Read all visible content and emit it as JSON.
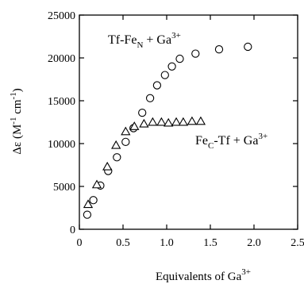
{
  "chart_data": {
    "type": "scatter",
    "xlabel": "Equivalents of Ga",
    "xlabel_sup": "3+",
    "ylabel_prefix": "Δε (M",
    "ylabel_sup1": "-1",
    "ylabel_mid": " cm",
    "ylabel_sup2": "-1",
    "ylabel_suffix": ")",
    "xlim": [
      0,
      2.5
    ],
    "ylim": [
      0,
      25000
    ],
    "x_ticks": [
      0,
      0.5,
      1.0,
      1.5,
      2.0,
      2.5
    ],
    "x_tick_labels": [
      "0",
      "0.5",
      "1.0",
      "1.5",
      "2.0",
      "2.5"
    ],
    "y_ticks": [
      0,
      5000,
      10000,
      15000,
      20000,
      25000
    ],
    "y_tick_labels": [
      "0",
      "5000",
      "10000",
      "15000",
      "20000",
      "25000"
    ],
    "grid": false,
    "series": [
      {
        "marker": "circle",
        "label_main": "Tf-Fe",
        "label_sub": "N",
        "label_rest": " + Ga",
        "label_sup": "3+",
        "x": [
          0.09,
          0.16,
          0.24,
          0.33,
          0.43,
          0.53,
          0.62,
          0.72,
          0.81,
          0.89,
          0.98,
          1.06,
          1.15,
          1.33,
          1.6,
          1.93
        ],
        "y": [
          1700,
          3400,
          5100,
          6800,
          8400,
          10200,
          11800,
          13600,
          15300,
          16800,
          18000,
          19000,
          19900,
          20500,
          21000,
          21300
        ]
      },
      {
        "marker": "triangle",
        "label_main": "Fe",
        "label_sub": "C",
        "label_rest": "-Tf  + Ga",
        "label_sup": "3+",
        "x": [
          0.1,
          0.2,
          0.32,
          0.42,
          0.53,
          0.63,
          0.74,
          0.84,
          0.94,
          1.02,
          1.11,
          1.19,
          1.29,
          1.39
        ],
        "y": [
          2900,
          5200,
          7300,
          9800,
          11400,
          12000,
          12300,
          12500,
          12500,
          12400,
          12500,
          12500,
          12600,
          12600
        ]
      }
    ]
  }
}
